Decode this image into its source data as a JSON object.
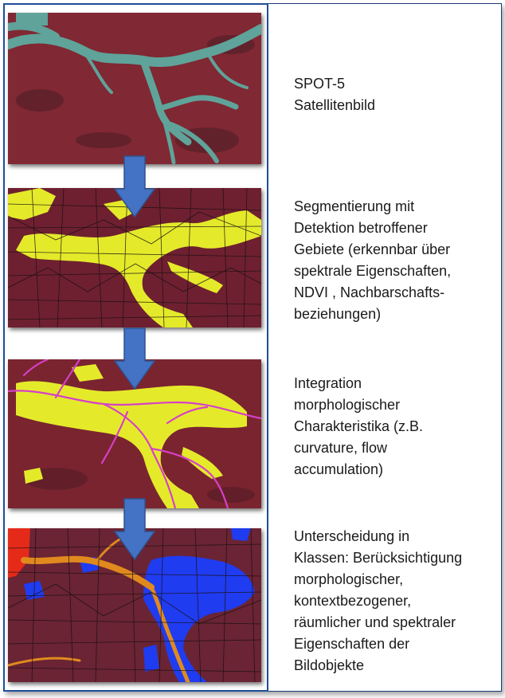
{
  "steps": [
    {
      "lines": [
        "SPOT-5",
        "Satellitenbild"
      ]
    },
    {
      "lines": [
        "Segmentierung mit",
        "Detektion betroffener",
        "Gebiete (erkennbar über",
        "spektrale Eigenschaften,",
        "NDVI , Nachbarschafts-",
        "beziehungen)"
      ]
    },
    {
      "lines": [
        "Integration",
        "morphologischer",
        "Charakteristika (z.B.",
        "curvature, flow",
        "accumulation)"
      ]
    },
    {
      "lines": [
        "Unterscheidung in",
        "Klassen: Berücksichtigung",
        "morphologischer,",
        "kontextbezogener,",
        "räumlicher und spektraler",
        "Eigenschaften der",
        "Bildobjekte"
      ]
    }
  ],
  "colors": {
    "frame": "#1f4e9a",
    "arrow": "#4472c4",
    "terrain": "#7a2430",
    "river_satellite": "#5fa39a",
    "detected_yellow": "#e4ea2a",
    "flow_magenta": "#d640c8",
    "class_blue": "#1f3cf0",
    "class_orange": "#e08a1e",
    "class_red": "#e62a1a"
  }
}
